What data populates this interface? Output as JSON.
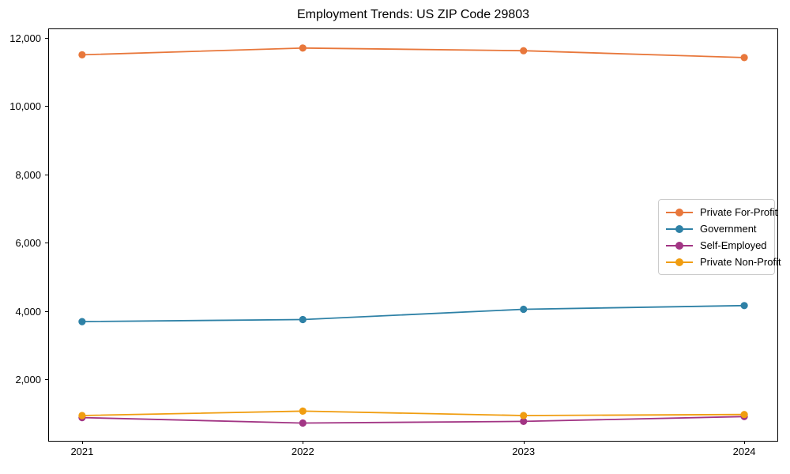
{
  "chart_data": {
    "type": "line",
    "title": "Employment Trends: US ZIP Code 29803",
    "xlabel": "",
    "ylabel": "",
    "x": [
      2021,
      2022,
      2023,
      2024
    ],
    "x_tick_labels": [
      "2021",
      "2022",
      "2023",
      "2024"
    ],
    "y_ticks": [
      2000,
      4000,
      6000,
      8000,
      10000,
      12000
    ],
    "y_tick_labels": [
      "2,000",
      "4,000",
      "6,000",
      "8,000",
      "10,000",
      "12,000"
    ],
    "xlim": [
      2020.85,
      2024.15
    ],
    "ylim": [
      200,
      12250
    ],
    "grid": false,
    "legend_position": "center-right",
    "marker": "circle",
    "series": [
      {
        "name": "Private For-Profit",
        "color": "#E8773B",
        "values": [
          11500,
          11700,
          11620,
          11420
        ]
      },
      {
        "name": "Government",
        "color": "#2E81A6",
        "values": [
          3690,
          3750,
          4050,
          4160
        ]
      },
      {
        "name": "Self-Employed",
        "color": "#A23584",
        "values": [
          880,
          720,
          770,
          910
        ]
      },
      {
        "name": "Private Non-Profit",
        "color": "#F09D10",
        "values": [
          940,
          1070,
          940,
          970
        ]
      }
    ]
  }
}
